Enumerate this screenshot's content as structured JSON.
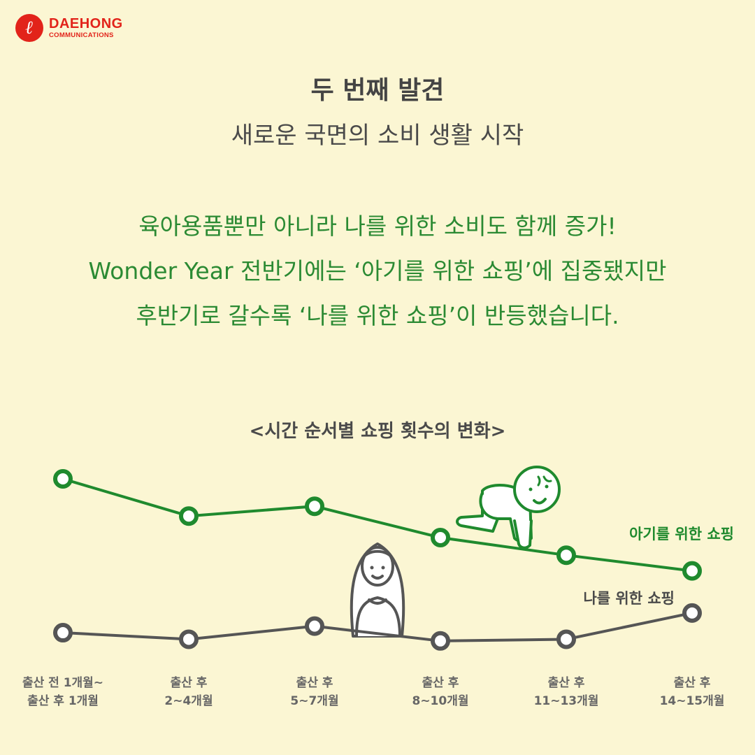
{
  "logo": {
    "mark": "ℓ",
    "name": "DAEHONG",
    "sub": "COMMUNICATIONS"
  },
  "heading": {
    "title": "두 번째 발견",
    "subtitle": "새로운 국면의 소비 생활 시작"
  },
  "body": {
    "lines": [
      "육아용품뿐만 아니라 나를 위한 소비도 함께 증가!",
      "Wonder Year 전반기에는 ‘아기를 위한 쇼핑’에 집중됐지만",
      "후반기로 갈수록 ‘나를 위한 쇼핑’이 반등했습니다."
    ]
  },
  "colors": {
    "background": "#fbf6d3",
    "green": "#1f8a2e",
    "gray": "#555555",
    "brand_red": "#e2231a"
  },
  "chart_data": {
    "type": "line",
    "title": "<시간 순서별 쇼핑 횟수의 변화>",
    "categories": [
      [
        "출산 전 1개월~",
        "출산 후 1개월"
      ],
      [
        "출산 후",
        "2~4개월"
      ],
      [
        "출산 후",
        "5~7개월"
      ],
      [
        "출산 후",
        "8~10개월"
      ],
      [
        "출산 후",
        "11~13개월"
      ],
      [
        "출산 후",
        "14~15개월"
      ]
    ],
    "series": [
      {
        "name": "아기를 위한 쇼핑",
        "color": "#1f8a2e",
        "values": [
          100,
          81,
          86,
          70,
          61,
          53
        ]
      },
      {
        "name": "나를 위한 쇼핑",
        "color": "#555555",
        "values": [
          17,
          13,
          21,
          12,
          13,
          29
        ]
      }
    ],
    "ylim": [
      0,
      100
    ],
    "grid": false,
    "axis_labels_shown": false,
    "illustrations": [
      "crawling-baby-icon",
      "woman-icon"
    ]
  }
}
